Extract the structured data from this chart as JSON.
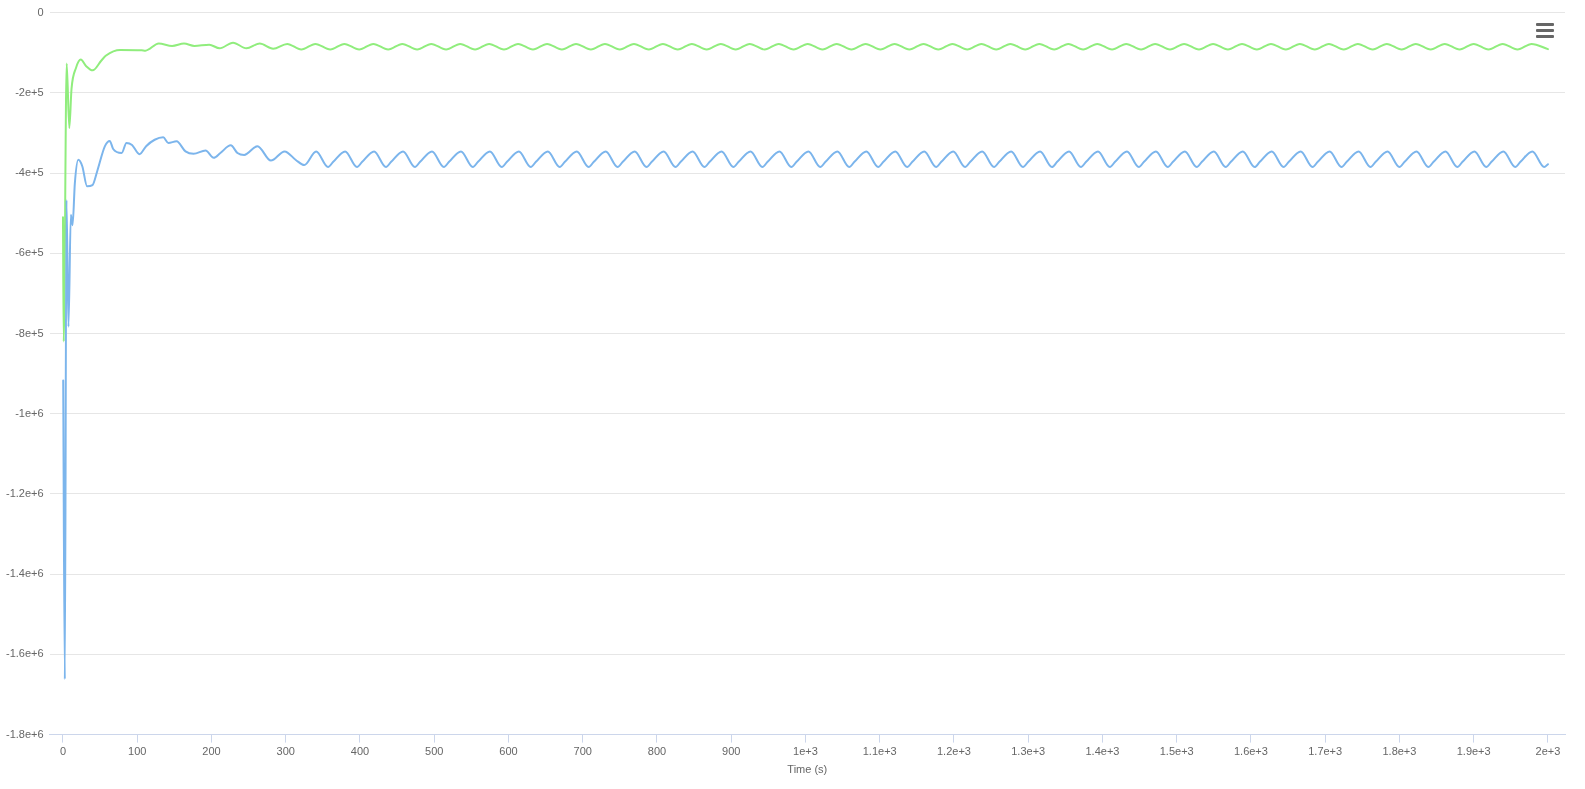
{
  "chart_data": {
    "type": "line",
    "xlabel": "Time (s)",
    "xlim": [
      -18,
      2023
    ],
    "xticks": [
      0,
      100,
      200,
      300,
      400,
      500,
      600,
      700,
      800,
      900,
      {
        "value": 1000,
        "label": "1e+3"
      },
      {
        "value": 1100,
        "label": "1.1e+3"
      },
      {
        "value": 1200,
        "label": "1.2e+3"
      },
      {
        "value": 1300,
        "label": "1.3e+3"
      },
      {
        "value": 1400,
        "label": "1.4e+3"
      },
      {
        "value": 1500,
        "label": "1.5e+3"
      },
      {
        "value": 1600,
        "label": "1.6e+3"
      },
      {
        "value": 1700,
        "label": "1.7e+3"
      },
      {
        "value": 1800,
        "label": "1.8e+3"
      },
      {
        "value": 1900,
        "label": "1.9e+3"
      },
      {
        "value": 2000,
        "label": "2e+3"
      }
    ],
    "ylim": [
      -1800000,
      0
    ],
    "yticks": [
      0,
      {
        "value": -200000,
        "label": "-2e+5"
      },
      {
        "value": -400000,
        "label": "-4e+5"
      },
      {
        "value": -600000,
        "label": "-6e+5"
      },
      {
        "value": -800000,
        "label": "-8e+5"
      },
      {
        "value": -1000000,
        "label": "-1e+6"
      },
      {
        "value": -1200000,
        "label": "-1.2e+6"
      },
      {
        "value": -1400000,
        "label": "-1.4e+6"
      },
      {
        "value": -1600000,
        "label": "-1.6e+6"
      },
      {
        "value": -1800000,
        "label": "-1.8e+6"
      }
    ],
    "grid": "y",
    "legend": false,
    "marker": "none",
    "line_style": "solid",
    "series": [
      {
        "color": "#7cb5ec",
        "x": [
          0.3,
          2.5,
          4.7,
          7.4,
          10.6,
          12.9,
          16,
          20.6,
          26,
          32.5,
          39.7,
          46,
          56.5,
          63,
          67.6,
          79,
          85.5,
          93,
          103,
          112,
          123.5,
          135,
          142,
          153,
          165,
          176,
          192,
          203,
          212,
          226,
          235,
          244,
          262,
          280,
          298.5,
          314,
          325,
          341,
          357,
          364,
          380,
          396,
          403,
          419,
          435,
          442,
          458,
          474,
          481,
          497,
          513,
          520,
          536,
          552,
          559,
          575,
          591,
          598,
          614,
          630,
          637,
          653,
          669,
          676,
          692,
          708,
          715,
          731,
          747,
          754,
          770,
          786,
          793,
          809,
          825,
          832,
          848,
          864,
          871,
          887,
          903,
          910,
          926,
          942,
          949,
          965,
          981,
          988,
          1004,
          1020,
          1027,
          1043,
          1059,
          1066,
          1082,
          1098,
          1105,
          1121,
          1137,
          1144,
          1160,
          1176,
          1183,
          1199,
          1215,
          1222,
          1238,
          1254,
          1261,
          1277,
          1293,
          1300,
          1316,
          1332,
          1339,
          1355,
          1371,
          1378,
          1394,
          1410,
          1417,
          1433,
          1449,
          1456,
          1472,
          1488,
          1495,
          1511,
          1527,
          1534,
          1550,
          1566,
          1573,
          1589,
          1605,
          1612,
          1628,
          1644,
          1651,
          1667,
          1683,
          1690,
          1706,
          1722,
          1729,
          1745,
          1761,
          1768,
          1784,
          1800,
          1807,
          1823,
          1839,
          1846,
          1862,
          1878,
          1885,
          1901,
          1917,
          1924,
          1940,
          1956,
          1963,
          1979,
          1995,
          2000
        ],
        "values": [
          -917000,
          -1662000,
          -467000,
          -783000,
          -504000,
          -530000,
          -425000,
          -367000,
          -383000,
          -433000,
          -430000,
          -396000,
          -333000,
          -320000,
          -340000,
          -350000,
          -325000,
          -330000,
          -353000,
          -333000,
          -317000,
          -311000,
          -325000,
          -321000,
          -346000,
          -352000,
          -344000,
          -362000,
          -350000,
          -331000,
          -350000,
          -355000,
          -333000,
          -369000,
          -346000,
          -368000,
          -380000,
          -346000,
          -385000,
          -372000,
          -346000,
          -385000,
          -372000,
          -346000,
          -385000,
          -372000,
          -346000,
          -385000,
          -372000,
          -346000,
          -385000,
          -372000,
          -346000,
          -385000,
          -372000,
          -346000,
          -385000,
          -372000,
          -346000,
          -385000,
          -372000,
          -346000,
          -385000,
          -372000,
          -346000,
          -385000,
          -372000,
          -346000,
          -385000,
          -372000,
          -346000,
          -385000,
          -372000,
          -346000,
          -385000,
          -372000,
          -346000,
          -385000,
          -372000,
          -346000,
          -385000,
          -372000,
          -346000,
          -385000,
          -372000,
          -346000,
          -385000,
          -372000,
          -346000,
          -385000,
          -372000,
          -346000,
          -385000,
          -372000,
          -346000,
          -385000,
          -372000,
          -346000,
          -385000,
          -372000,
          -346000,
          -385000,
          -372000,
          -346000,
          -385000,
          -372000,
          -346000,
          -385000,
          -372000,
          -346000,
          -385000,
          -372000,
          -346000,
          -385000,
          -372000,
          -346000,
          -385000,
          -372000,
          -346000,
          -385000,
          -372000,
          -346000,
          -385000,
          -372000,
          -346000,
          -385000,
          -372000,
          -346000,
          -385000,
          -372000,
          -346000,
          -385000,
          -372000,
          -346000,
          -385000,
          -372000,
          -346000,
          -385000,
          -372000,
          -346000,
          -385000,
          -372000,
          -346000,
          -385000,
          -372000,
          -346000,
          -385000,
          -372000,
          -346000,
          -385000,
          -372000,
          -346000,
          -385000,
          -372000,
          -346000,
          -385000,
          -372000,
          -346000,
          -385000,
          -372000,
          -346000,
          -385000,
          -372000,
          -346000,
          -385000,
          -378000
        ]
      },
      {
        "color": "#90ed7d",
        "x": [
          0,
          1,
          5,
          8.5,
          11.5,
          17.5,
          24,
          31,
          40,
          51.5,
          58,
          77,
          106,
          111,
          129,
          147,
          163,
          177,
          197,
          211,
          229,
          247,
          265,
          283,
          302,
          321,
          340,
          360,
          379,
          399,
          418,
          438,
          457,
          477,
          496,
          516,
          535,
          555,
          574,
          594,
          613,
          633,
          652,
          672,
          691,
          711,
          730,
          750,
          769,
          789,
          808,
          828,
          847,
          867,
          886,
          906,
          925,
          945,
          964,
          984,
          1003,
          1023,
          1042,
          1062,
          1081,
          1101,
          1120,
          1140,
          1159,
          1179,
          1198,
          1218,
          1237,
          1257,
          1276,
          1296,
          1315,
          1335,
          1354,
          1374,
          1393,
          1413,
          1432,
          1452,
          1471,
          1491,
          1510,
          1530,
          1549,
          1569,
          1588,
          1608,
          1627,
          1647,
          1666,
          1686,
          1705,
          1725,
          1744,
          1764,
          1783,
          1803,
          1822,
          1842,
          1861,
          1881,
          1900,
          1920,
          1939,
          1959,
          1978,
          2000
        ],
        "values": [
          -510000,
          -820000,
          -127000,
          -288000,
          -190000,
          -138000,
          -117000,
          -133000,
          -144000,
          -120000,
          -107000,
          -93000,
          -94000,
          -95000,
          -77000,
          -83000,
          -77000,
          -83000,
          -80000,
          -89000,
          -75000,
          -89000,
          -77000,
          -90000,
          -78000,
          -92000,
          -78000,
          -92000,
          -78000,
          -92000,
          -78000,
          -92000,
          -78000,
          -92000,
          -78000,
          -92000,
          -78000,
          -92000,
          -78000,
          -92000,
          -78000,
          -92000,
          -78000,
          -92000,
          -78000,
          -92000,
          -78000,
          -92000,
          -78000,
          -92000,
          -78000,
          -92000,
          -78000,
          -92000,
          -78000,
          -92000,
          -78000,
          -92000,
          -78000,
          -92000,
          -78000,
          -92000,
          -78000,
          -92000,
          -78000,
          -92000,
          -78000,
          -92000,
          -78000,
          -92000,
          -78000,
          -92000,
          -78000,
          -92000,
          -78000,
          -92000,
          -78000,
          -92000,
          -78000,
          -92000,
          -78000,
          -92000,
          -78000,
          -92000,
          -78000,
          -92000,
          -78000,
          -92000,
          -78000,
          -92000,
          -78000,
          -92000,
          -78000,
          -92000,
          -78000,
          -92000,
          -78000,
          -92000,
          -78000,
          -92000,
          -78000,
          -92000,
          -78000,
          -92000,
          -78000,
          -92000,
          -78000,
          -92000,
          -78000,
          -92000,
          -78000,
          -91000
        ]
      }
    ]
  }
}
